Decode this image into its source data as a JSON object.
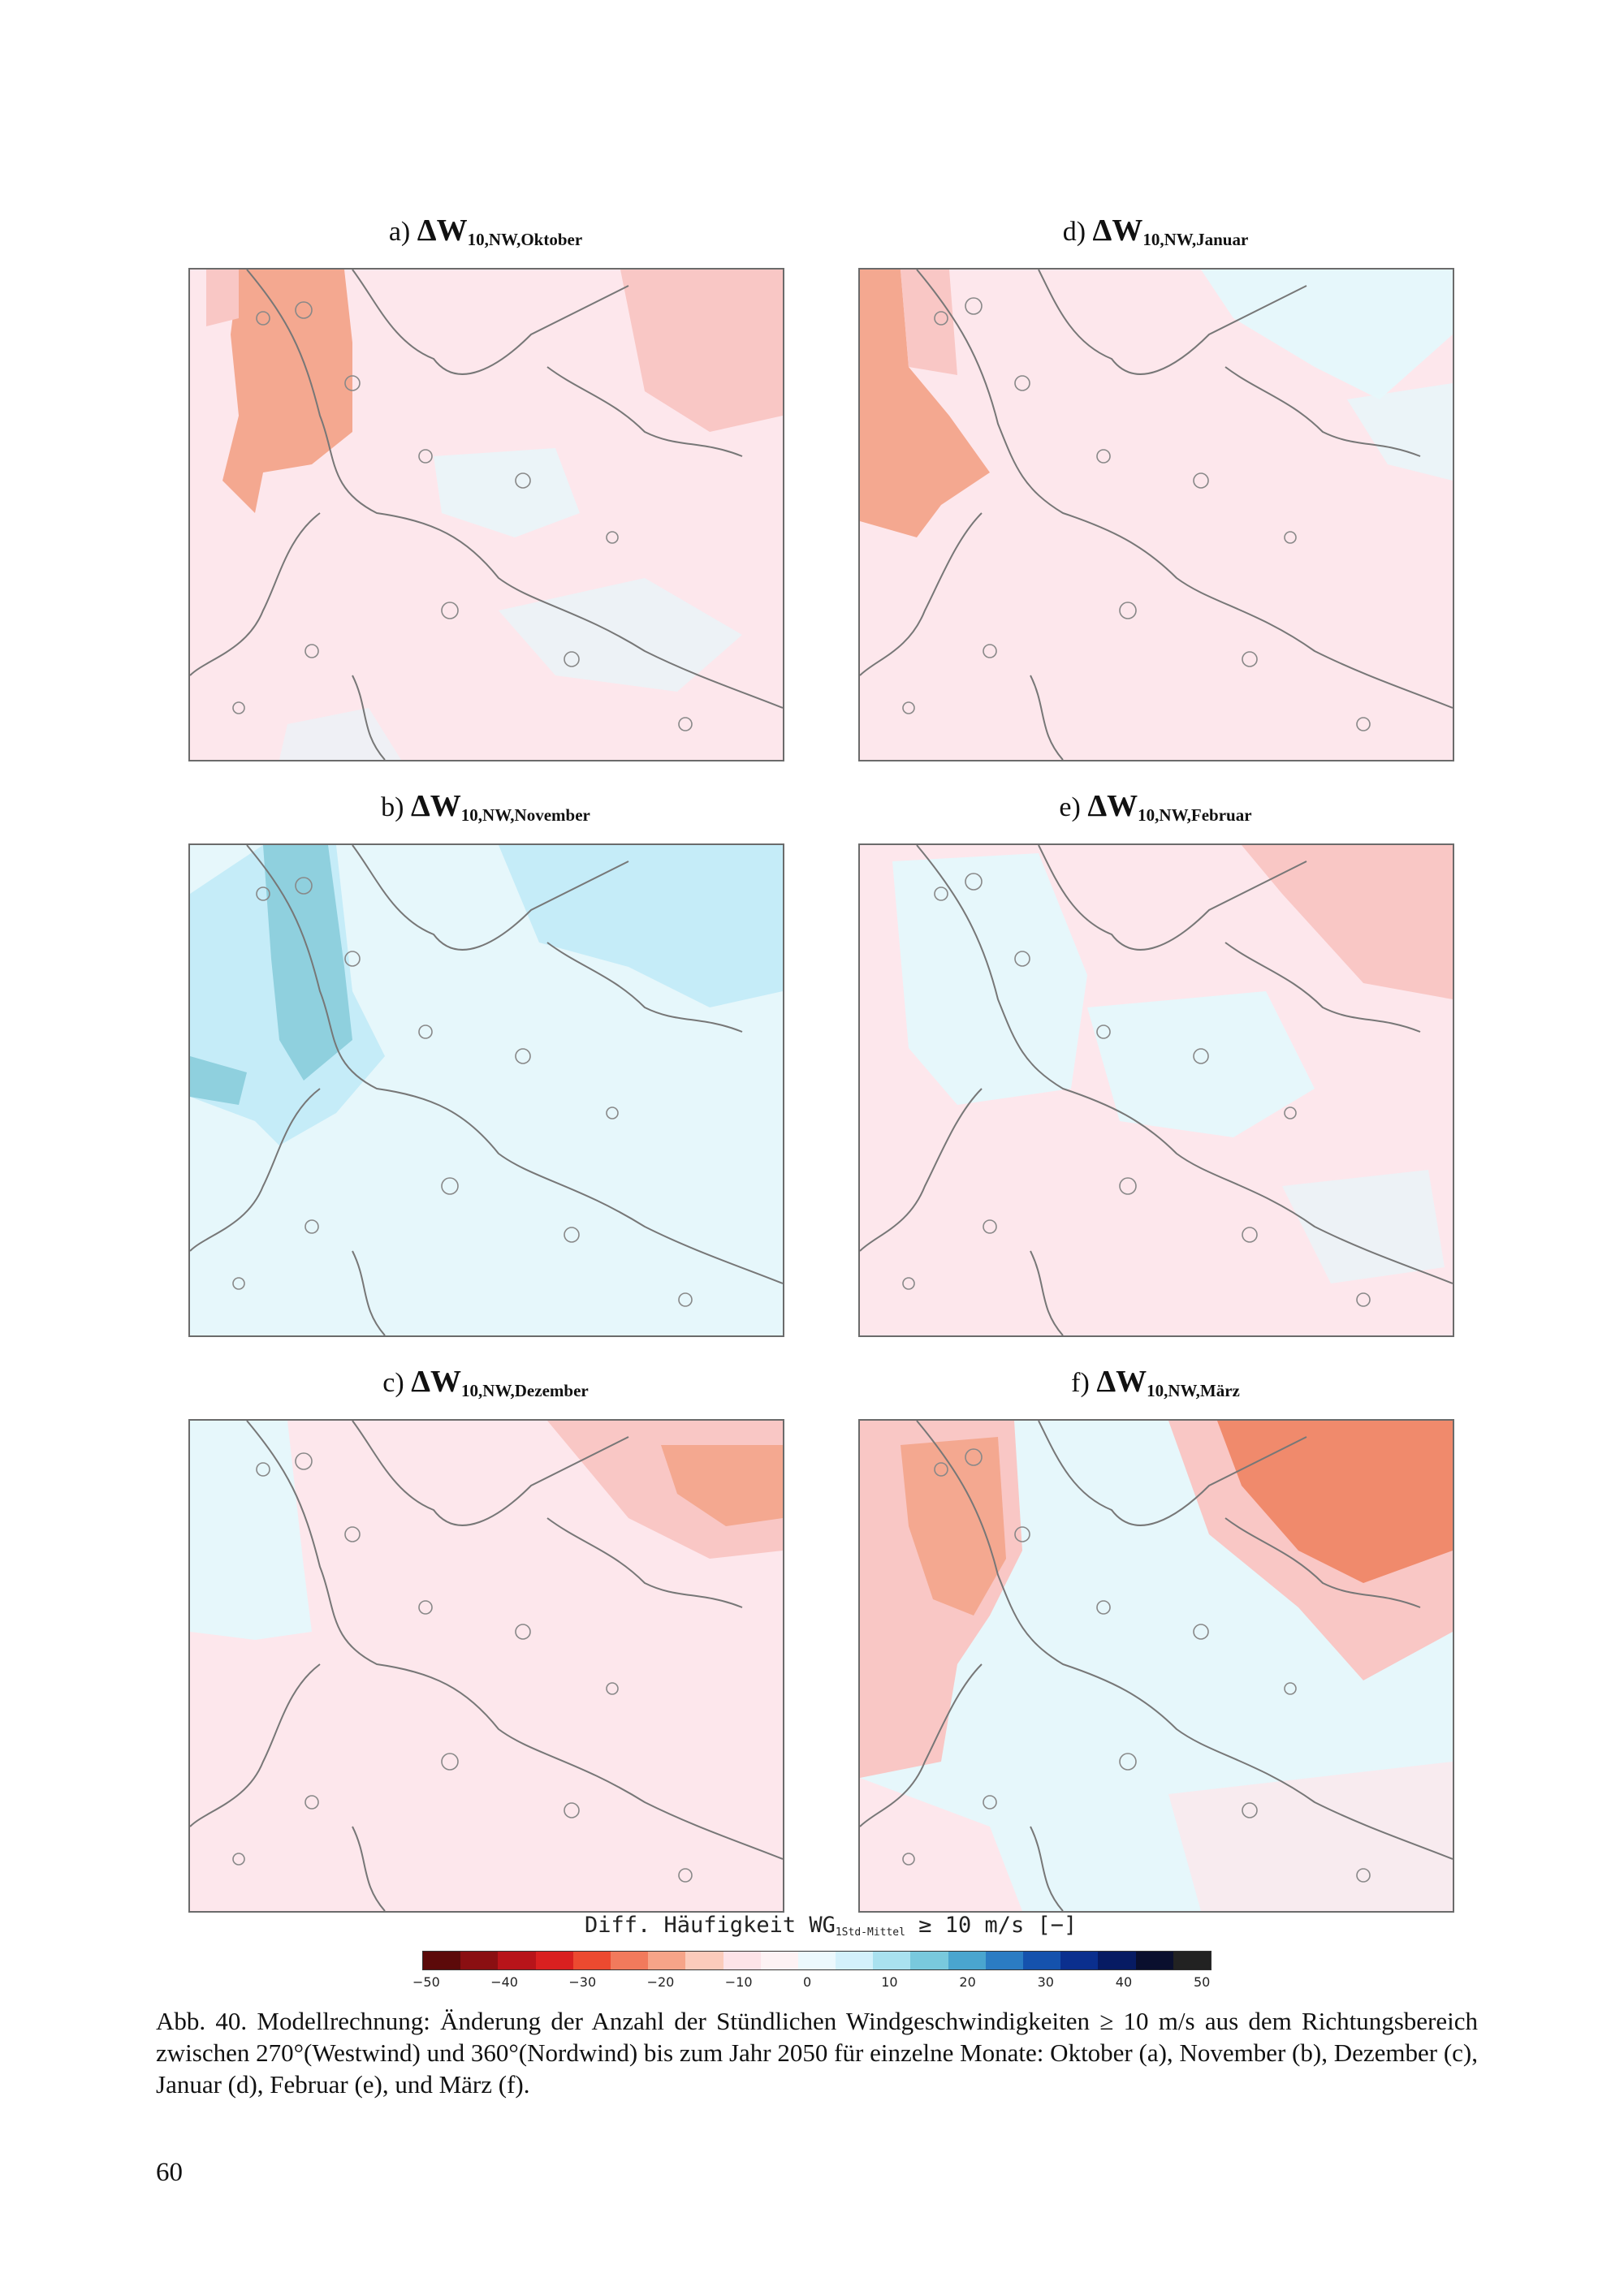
{
  "panels": [
    {
      "id": "a",
      "label": "a)",
      "symbol": "ΔW",
      "subscript": "10,NW,Oktober"
    },
    {
      "id": "b",
      "label": "b)",
      "symbol": "ΔW",
      "subscript": "10,NW,November"
    },
    {
      "id": "c",
      "label": "c)",
      "symbol": "ΔW",
      "subscript": "10,NW,Dezember"
    },
    {
      "id": "d",
      "label": "d)",
      "symbol": "ΔW",
      "subscript": "10,NW,Januar"
    },
    {
      "id": "e",
      "label": "e)",
      "symbol": "ΔW",
      "subscript": "10,NW,Februar"
    },
    {
      "id": "f",
      "label": "f)",
      "symbol": "ΔW",
      "subscript": "10,NW,März"
    }
  ],
  "legend": {
    "title_prefix": "Diff. Häufigkeit WG",
    "title_sub": "1Std-Mittel",
    "title_suffix": "≥ 10 m/s [−]",
    "ticks": [
      "−50",
      "−40",
      "−30",
      "−20",
      "−10",
      "0",
      "10",
      "20",
      "30",
      "40",
      "50"
    ],
    "colors": [
      "#5c0a0a",
      "#8a0f12",
      "#b8141a",
      "#d92020",
      "#ec4a30",
      "#f27a5c",
      "#f6a488",
      "#fbcbbb",
      "#fde3e8",
      "#fdf2f4",
      "#ecf9fd",
      "#d3f1fb",
      "#a9e1ef",
      "#79c9dd",
      "#4aa5cf",
      "#2b7cc3",
      "#1552ad",
      "#0b2f8e",
      "#071b63",
      "#0a0f2e",
      "#222222"
    ]
  },
  "colors": {
    "pink_light": "#fde7ec",
    "pink_mid": "#f9c7c5",
    "salmon": "#f4a890",
    "salmon_dark": "#f08a6c",
    "blue_light": "#e6f7fb",
    "blue_mid": "#c5ecf8",
    "teal": "#8fd0de",
    "coastline": "#777777"
  },
  "caption": "Abb. 40. Modellrechnung: Änderung der Anzahl der Stündlichen Windgeschwindigkeiten ≥ 10 m/s aus dem Richtungsbereich zwischen 270°(Westwind) und 360°(Nordwind) bis zum Jahr 2050 für einzelne Monate: Oktober (a), November (b), Dezember (c), Januar (d), Februar (e), und März (f).",
  "page_number": "60"
}
